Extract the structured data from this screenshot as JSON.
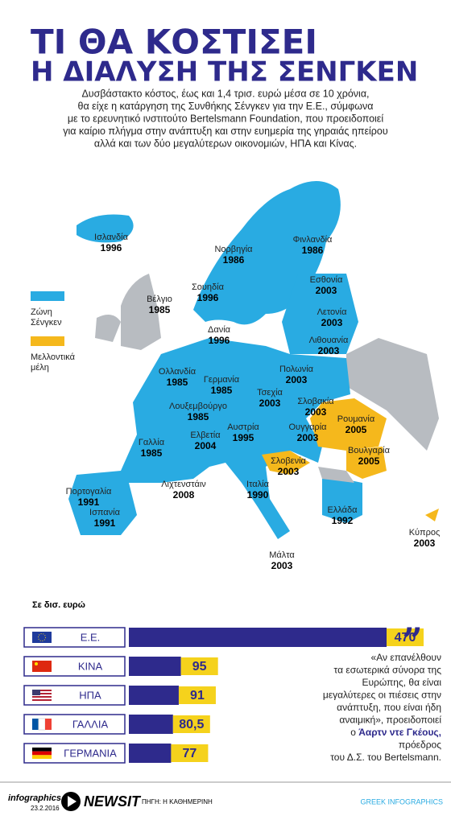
{
  "header": {
    "title_line1": "ΤΙ ΘΑ ΚΟΣΤΙΣΕΙ",
    "title_line2": "Η ΔΙΑΛΥΣΗ ΤΗΣ ΣΕΝΓΚΕΝ",
    "intro": [
      "Δυσβάστακτο κόστος, έως και 1,4 τρισ. ευρώ μέσα σε 10 χρόνια,",
      "θα είχε η κατάργηση της Συνθήκης Σένγκεν για την Ε.Ε., σύμφωνα",
      "με το ερευνητικό ινστιτούτο Bertelsmann Foundation, που προειδοποιεί",
      "για καίριο πλήγμα στην ανάπτυξη και στην ευημερία της γηραιάς ηπείρου",
      "αλλά και των δύο μεγαλύτερων οικονομιών, ΗΠΑ και Κίνας."
    ]
  },
  "map": {
    "legend": [
      {
        "lines": [
          "Ζώνη",
          "Σένγκεν"
        ],
        "color": "#29abe2"
      },
      {
        "lines": [
          "Μελλοντικά",
          "μέλη"
        ],
        "color": "#f5b81c"
      }
    ],
    "countries": [
      {
        "name": "Ισλανδία",
        "year": "1996"
      },
      {
        "name": "Νορβηγία",
        "year": "1986"
      },
      {
        "name": "Φινλανδία",
        "year": "1986"
      },
      {
        "name": "Σουηδία",
        "year": "1996"
      },
      {
        "name": "Εσθονία",
        "year": "2003"
      },
      {
        "name": "Βέλγιο",
        "year": "1985"
      },
      {
        "name": "Λετονία",
        "year": "2003"
      },
      {
        "name": "Δανία",
        "year": "1996"
      },
      {
        "name": "Λιθουανία",
        "year": "2003"
      },
      {
        "name": "Ολλανδία",
        "year": "1985"
      },
      {
        "name": "Γερμανία",
        "year": "1985"
      },
      {
        "name": "Πολωνία",
        "year": "2003"
      },
      {
        "name": "Τσεχία",
        "year": "2003"
      },
      {
        "name": "Σλοβακία",
        "year": "2003"
      },
      {
        "name": "Λουξεμβούργο",
        "year": "1985"
      },
      {
        "name": "Ρουμανία",
        "year": "2005"
      },
      {
        "name": "Ελβετία",
        "year": "2004"
      },
      {
        "name": "Αυστρία",
        "year": "1995"
      },
      {
        "name": "Ουγγαρία",
        "year": "2003"
      },
      {
        "name": "Γαλλία",
        "year": "1985"
      },
      {
        "name": "Βουλγαρία",
        "year": "2005"
      },
      {
        "name": "Σλοβενία",
        "year": "2003"
      },
      {
        "name": "Πορτογαλία",
        "year": "1991"
      },
      {
        "name": "Λιχτενστάιν",
        "year": "2008"
      },
      {
        "name": "Ιταλία",
        "year": "1990"
      },
      {
        "name": "Ισπανία",
        "year": "1991"
      },
      {
        "name": "Ελλάδα",
        "year": "1992"
      },
      {
        "name": "Κύπρος",
        "year": "2003"
      },
      {
        "name": "Μάλτα",
        "year": "2003"
      }
    ]
  },
  "chart_data": {
    "type": "bar",
    "unit_label": "Σε δισ. ευρώ",
    "categories": [
      "Ε.Ε.",
      "ΚΙΝΑ",
      "ΗΠΑ",
      "ΓΑΛΛΙΑ",
      "ΓΕΡΜΑΝΙΑ"
    ],
    "values": [
      470,
      95,
      91,
      80.5,
      77
    ],
    "value_labels": [
      "470",
      "95",
      "91",
      "80,5",
      "77"
    ],
    "color": "#2e2a8c"
  },
  "quote": {
    "lines": [
      "«Αν επανέλθουν",
      "τα εσωτερικά σύνορα της",
      "Ευρώπης, θα είναι",
      "μεγαλύτερες οι πιέσεις στην",
      "ανάπτυξη, που είναι ήδη",
      "αναιμική», προειδοποιεί"
    ],
    "prefix": "ο",
    "name": "Άαρτν ντε Γκέους,",
    "after": [
      "πρόεδρος",
      "του Δ.Σ. του Bertelsmann."
    ]
  },
  "footer": {
    "brand": "infographics",
    "date": "23.2.2016",
    "logo": "NEWSIT",
    "source": "ΠΗΓΗ: Η ΚΑΘΗΜΕΡΙΝΗ",
    "credit": "GREEK INFOGRAPHICS"
  }
}
